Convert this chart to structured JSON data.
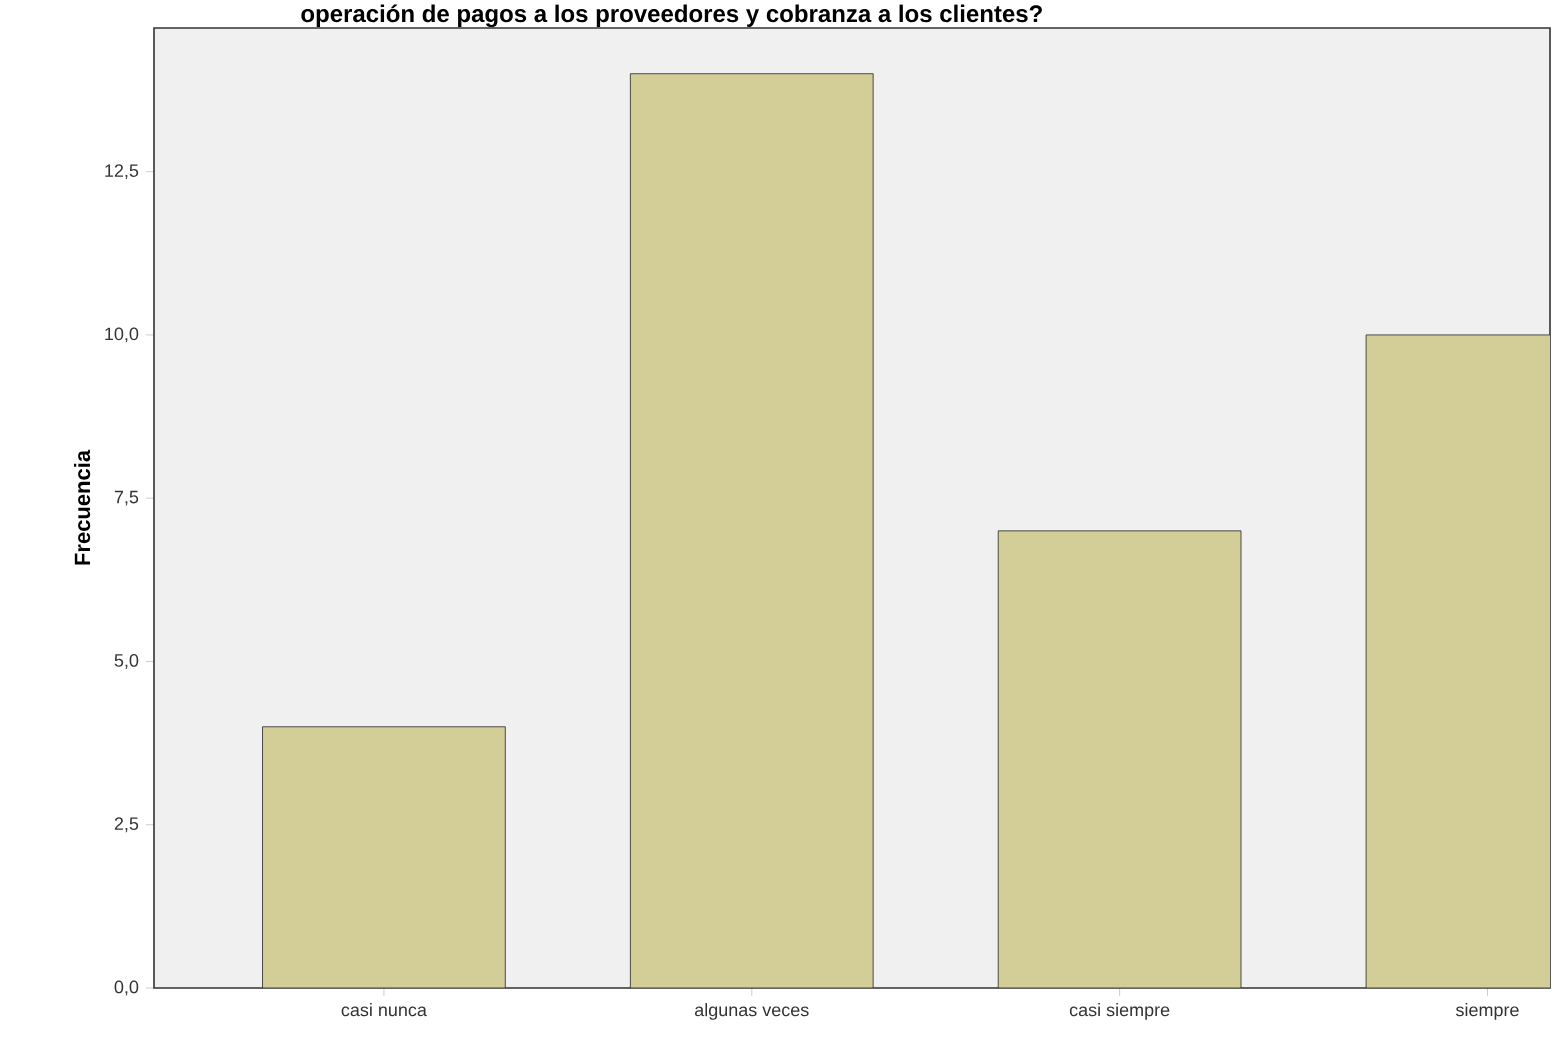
{
  "chart_data": {
    "type": "bar",
    "title": "operación de pagos a los proveedores y cobranza a los clientes?",
    "ylabel": "Frecuencia",
    "categories": [
      "casi nunca",
      "algunas veces",
      "casi siempre",
      "siempre"
    ],
    "values": [
      4,
      14,
      7,
      10
    ],
    "color": "#d3cd98",
    "ylim": [
      0,
      14.7
    ],
    "yticks": [
      {
        "value": 0,
        "label": "0,0"
      },
      {
        "value": 2.5,
        "label": "2,5"
      },
      {
        "value": 5,
        "label": "5,0"
      },
      {
        "value": 7.5,
        "label": "7,5"
      },
      {
        "value": 10,
        "label": "10,0"
      },
      {
        "value": 12.5,
        "label": "12,5"
      }
    ],
    "grid": false
  }
}
